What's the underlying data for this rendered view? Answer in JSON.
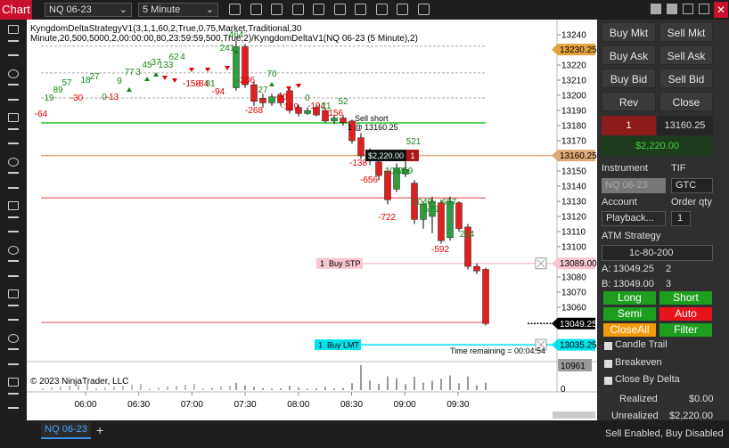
{
  "toolbar": {
    "tab": "Chart",
    "instrument": "NQ 06-23",
    "interval": "5 Minute"
  },
  "chart": {
    "strategy_label": "KyngdomDeltaStrategyV1(3,1,1,60,2,True,0.75,Market,Traditional,30 Minute,20,500,5000,2,00:00:00,80,23:59:59,500,True,2)/KyngdomDeltaV1(NQ 06-23 (5 Minute),2)",
    "copyright": "© 2023 NinjaTrader, LLC",
    "ylim": [
      13027.65,
      13250
    ],
    "price_ticks": [
      13240,
      13220,
      13210,
      13200,
      13190,
      13180,
      13170,
      13150,
      13140,
      13130,
      13120,
      13110,
      13100,
      13080,
      13070,
      13060
    ],
    "time_labels": [
      "06:00",
      "06:30",
      "07:00",
      "07:30",
      "08:00",
      "08:30",
      "09:00",
      "09:30"
    ],
    "candles": [
      {
        "o": 13205,
        "h": 13236,
        "l": 13203,
        "c": 13232
      },
      {
        "o": 13232,
        "h": 13234,
        "l": 13205,
        "c": 13207
      },
      {
        "o": 13207,
        "h": 13209,
        "l": 13193,
        "c": 13196
      },
      {
        "o": 13198,
        "h": 13201,
        "l": 13192,
        "c": 13195
      },
      {
        "o": 13195,
        "h": 13201,
        "l": 13193,
        "c": 13199
      },
      {
        "o": 13200,
        "h": 13202,
        "l": 13193,
        "c": 13195
      },
      {
        "o": 13203,
        "h": 13205,
        "l": 13188,
        "c": 13190
      },
      {
        "o": 13192,
        "h": 13194,
        "l": 13186,
        "c": 13188
      },
      {
        "o": 13188,
        "h": 13192,
        "l": 13187,
        "c": 13190
      },
      {
        "o": 13192,
        "h": 13194,
        "l": 13186,
        "c": 13187
      },
      {
        "o": 13190,
        "h": 13192,
        "l": 13182,
        "c": 13183
      },
      {
        "o": 13183,
        "h": 13187,
        "l": 13181,
        "c": 13185
      },
      {
        "o": 13185,
        "h": 13187,
        "l": 13180,
        "c": 13182
      },
      {
        "o": 13183,
        "h": 13184,
        "l": 13168,
        "c": 13170
      },
      {
        "o": 13172,
        "h": 13175,
        "l": 13158,
        "c": 13160
      },
      {
        "o": 13162,
        "h": 13165,
        "l": 13154,
        "c": 13157
      },
      {
        "o": 13156,
        "h": 13159,
        "l": 13144,
        "c": 13147
      },
      {
        "o": 13150,
        "h": 13152,
        "l": 13128,
        "c": 13131
      },
      {
        "o": 13138,
        "h": 13155,
        "l": 13136,
        "c": 13152
      },
      {
        "o": 13148,
        "h": 13157,
        "l": 13146,
        "c": 13151
      },
      {
        "o": 13142,
        "h": 13144,
        "l": 13115,
        "c": 13118
      },
      {
        "o": 13118,
        "h": 13130,
        "l": 13112,
        "c": 13128
      },
      {
        "o": 13120,
        "h": 13133,
        "l": 13109,
        "c": 13130
      },
      {
        "o": 13129,
        "h": 13131,
        "l": 13102,
        "c": 13104
      },
      {
        "o": 13106,
        "h": 13133,
        "l": 13104,
        "c": 13130
      },
      {
        "o": 13129,
        "h": 13130,
        "l": 13110,
        "c": 13112
      },
      {
        "o": 13113,
        "h": 13115,
        "l": 13085,
        "c": 13087
      },
      {
        "o": 13087,
        "h": 13089,
        "l": 13082,
        "c": 13084
      },
      {
        "o": 13085,
        "h": 13086,
        "l": 13048,
        "c": 13049.25
      }
    ],
    "up_color": "#2e9e3e",
    "down_color": "#e0201e",
    "volumes": [
      3200,
      2100,
      1500,
      900,
      700,
      800,
      1900,
      1200,
      600,
      800,
      1400,
      700,
      900,
      3000,
      10961,
      4200,
      2800,
      6100,
      5200,
      2600,
      5900,
      3300,
      4100,
      5000,
      6400,
      3000,
      6000,
      2200,
      3300
    ],
    "volume_ticks": [
      0,
      10961
    ],
    "delta_labels": [
      "-64",
      "19",
      "89",
      "57",
      "-30",
      "18",
      "27",
      "0",
      "-13",
      "9",
      "77",
      "3",
      "45",
      "37",
      "133",
      "62",
      "4",
      "-158",
      "-84",
      "81",
      "-94",
      "241",
      "464",
      "-236",
      "-268",
      "27",
      "70",
      "-50",
      "-149",
      "0",
      "-194",
      "21",
      "-156",
      "52",
      "-138",
      "-656",
      "1084",
      "259",
      "521",
      "-722",
      "1040",
      "579",
      "-592",
      "657",
      "214"
    ],
    "levels": [
      {
        "value": 13232.5,
        "color": "#aaaaaa",
        "dashed": true
      },
      {
        "value": 13214.75,
        "color": "#aaaaaa",
        "dashed": true
      },
      {
        "value": 13198.25,
        "color": "#aaaaaa",
        "dashed": true
      },
      {
        "value": 13181.75,
        "color": "#00b000",
        "dashed": false
      },
      {
        "value": 13132.25,
        "color": "#e07070",
        "dashed": false
      },
      {
        "value": 13050,
        "color": "#e07070",
        "dashed": false
      }
    ],
    "price_markers": [
      {
        "value": 13230.25,
        "color": "#e5a23a",
        "text_color": "#000000"
      },
      {
        "value": 13160.25,
        "color": "#dcaa74",
        "text_color": "#000000"
      },
      {
        "value": 13089,
        "label": "13089.00",
        "color": "#f8c6cf",
        "text_color": "#000000"
      },
      {
        "value": 13049.25,
        "color": "#000000",
        "text_color": "#ffffff"
      },
      {
        "value": 13035.25,
        "color": "#00e3ee",
        "text_color": "#000000"
      }
    ],
    "execution": {
      "text": "Sell short",
      "fill": "1 @ 13160.25"
    },
    "position": {
      "pnl": "$2,220.00",
      "qty": "1"
    },
    "orders": [
      {
        "qty": "1",
        "type": "Buy STP",
        "value": 13089,
        "color": "#f8c6cf"
      },
      {
        "qty": "1",
        "type": "Buy LMT",
        "value": 13035.25,
        "color": "#00e3ee"
      }
    ],
    "time_remaining": "Time remaining = 00:04:54"
  },
  "panel": {
    "buttons": [
      "Buy Mkt",
      "Sell Mkt",
      "Buy Ask",
      "Sell Ask",
      "Buy Bid",
      "Sell Bid",
      "Rev",
      "Close"
    ],
    "position_qty": "1",
    "avg_price": "13160.25",
    "unrealized_box": "$2,220.00",
    "instrument_label": "Instrument",
    "tif_label": "TIF",
    "instrument": "NQ 06-23",
    "tif": "GTC",
    "account_label": "Account",
    "qty_label": "Order qty",
    "account": "Playback...",
    "qty": "1",
    "atm_label": "ATM Strategy",
    "atm": "1c-80-200",
    "ask": {
      "label": "A:",
      "price": "13049.25",
      "size": "2"
    },
    "bid": {
      "label": "B:",
      "price": "13049.00",
      "size": "3"
    },
    "strategy_buttons": [
      {
        "text": "Long",
        "color": "#1e9e1e"
      },
      {
        "text": "Short",
        "color": "#1e9e1e"
      },
      {
        "text": "Semi",
        "color": "#1e9e1e"
      },
      {
        "text": "Auto",
        "color": "#e8141c"
      },
      {
        "text": "CloseAll",
        "color": "#f59a0c"
      },
      {
        "text": "Filter",
        "color": "#1e9e1e"
      }
    ],
    "checkboxes": [
      "Candle Trail",
      "Breakeven",
      "Close By Delta"
    ],
    "realized_label": "Realized",
    "realized": "$0.00",
    "unrealized_label": "Unrealized",
    "unrealized": "$2,220.00"
  },
  "footer": {
    "tab": "NQ 06-23",
    "status": "Sell Enabled, Buy Disabled"
  }
}
